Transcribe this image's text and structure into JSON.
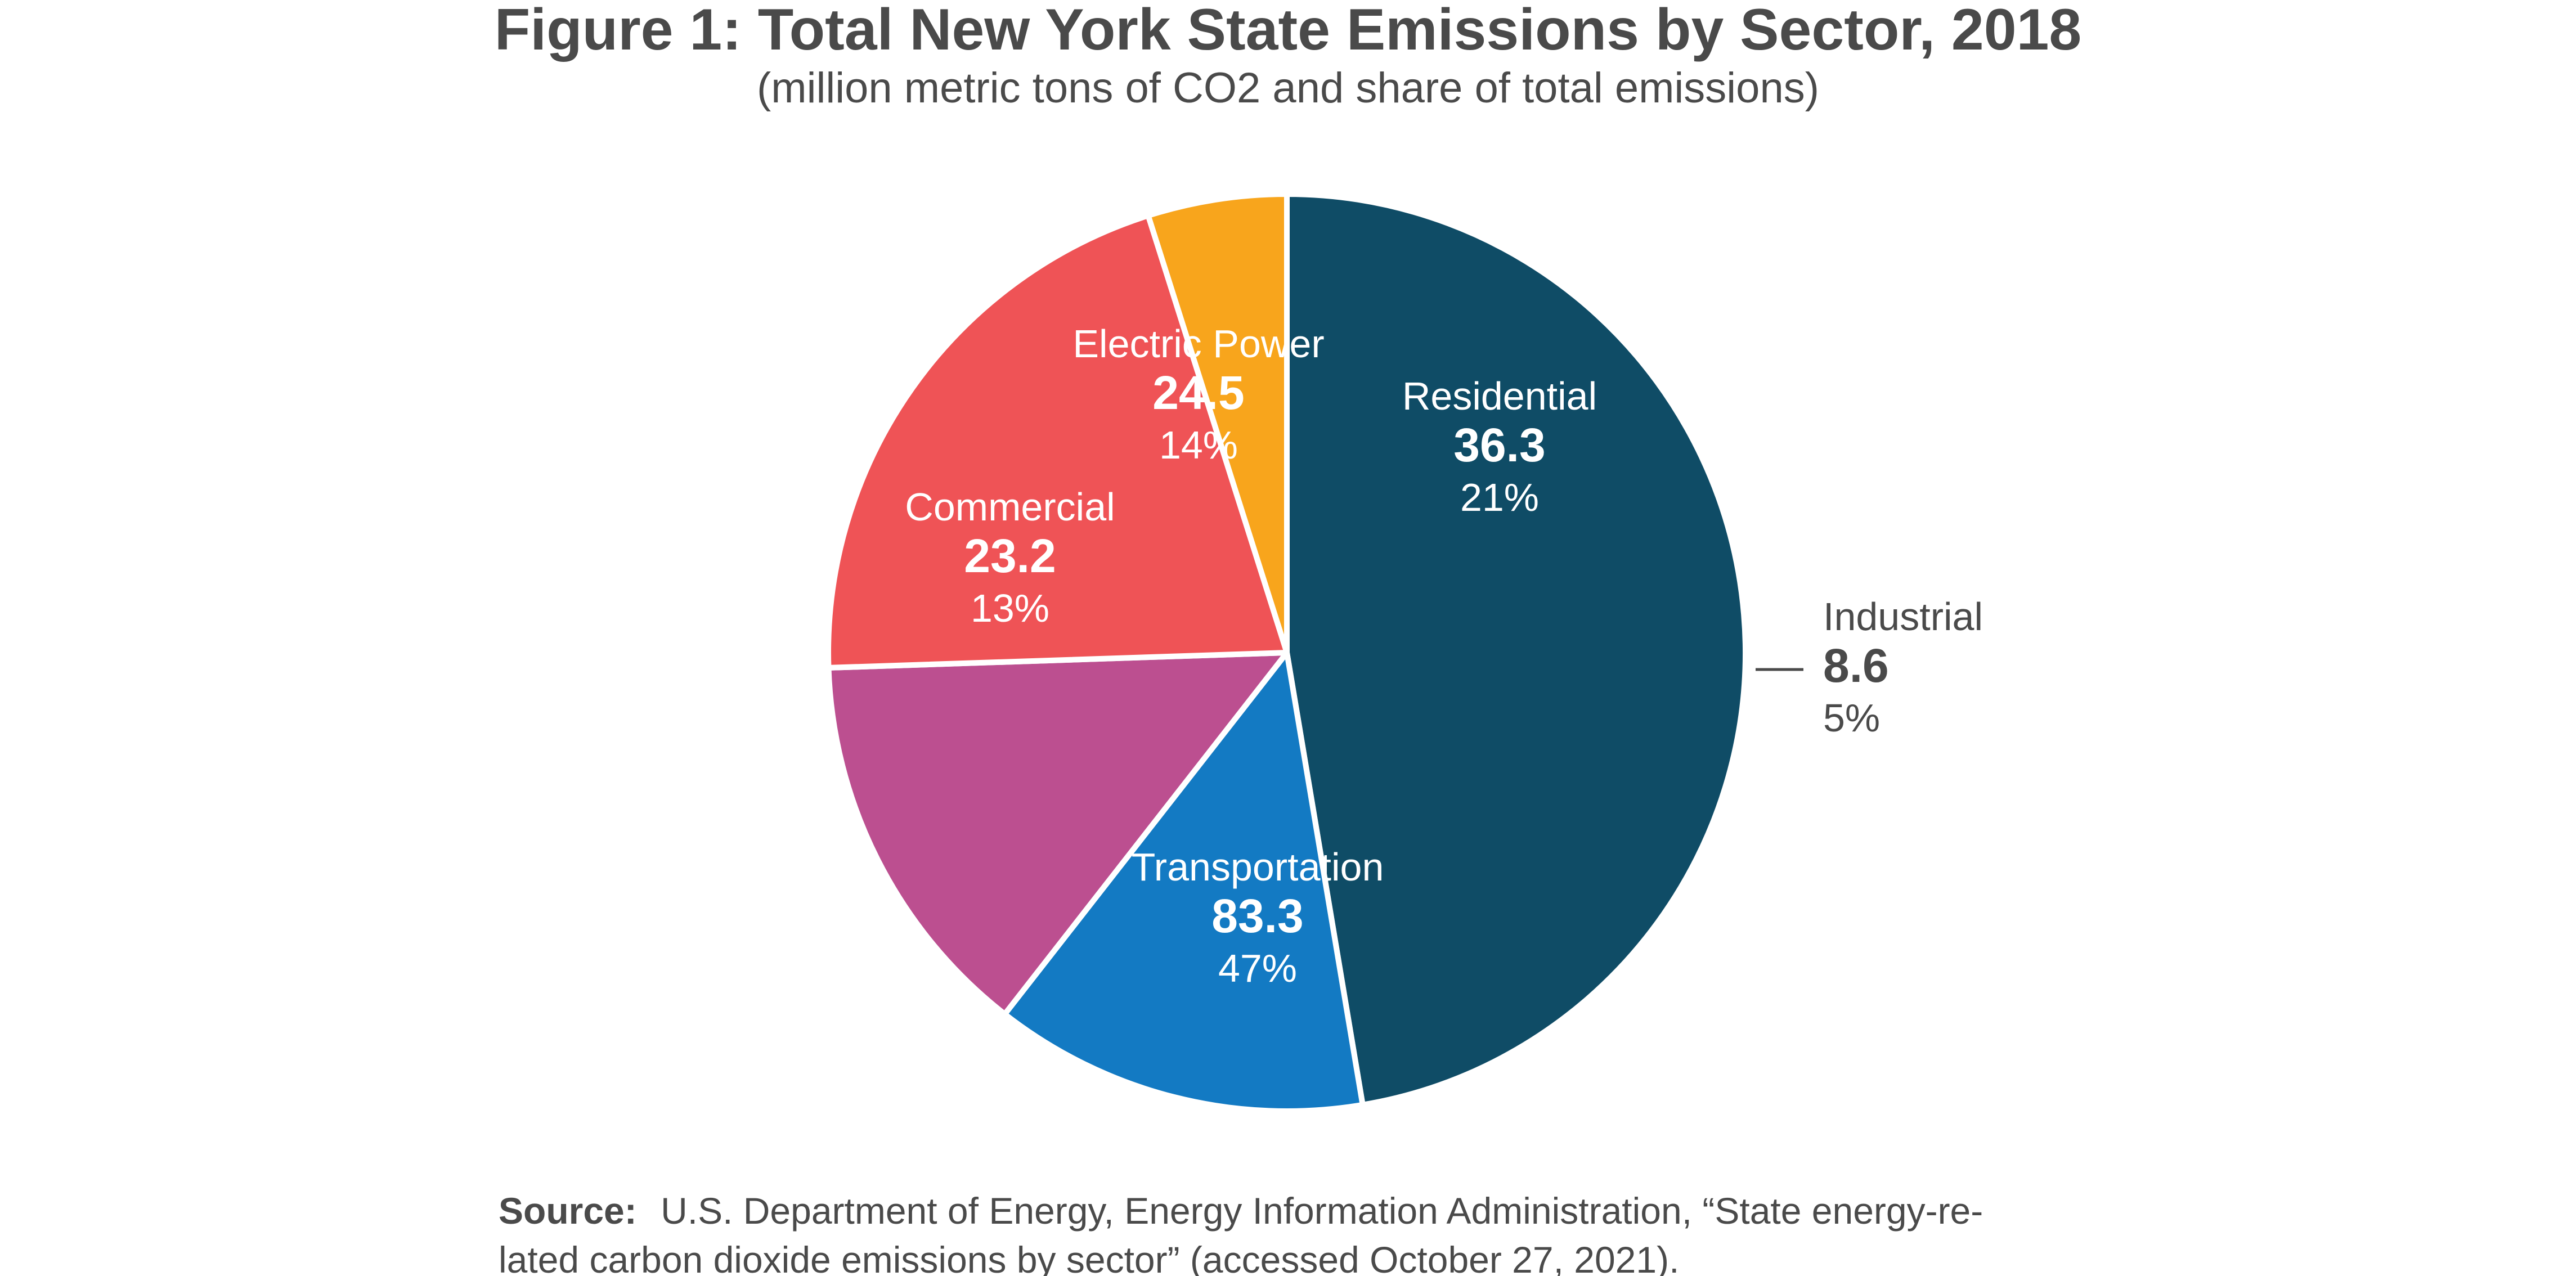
{
  "chart_data": {
    "type": "pie",
    "title": "Figure 1: Total New York State Emissions by Sector, 2018",
    "subtitle": "(million metric tons of CO2 and share of total emissions)",
    "start_angle_deg": -90,
    "direction": "clockwise",
    "slices": [
      {
        "label": "Transportation",
        "value": 83.3,
        "value_label": "83.3",
        "percent_label": "47%",
        "color": "#0f4c66",
        "text_color": "#ffffff"
      },
      {
        "label": "Commercial",
        "value": 23.2,
        "value_label": "23.2",
        "percent_label": "13%",
        "color": "#137ac3",
        "text_color": "#ffffff"
      },
      {
        "label": "Electric Power",
        "value": 24.5,
        "value_label": "24.5",
        "percent_label": "14%",
        "color": "#bc4f90",
        "text_color": "#ffffff"
      },
      {
        "label": "Residential",
        "value": 36.3,
        "value_label": "36.3",
        "percent_label": "21%",
        "color": "#ef5356",
        "text_color": "#ffffff"
      },
      {
        "label": "Industrial",
        "value": 8.6,
        "value_label": "8.6",
        "percent_label": "5%",
        "color": "#f8a51c",
        "text_color": "#4a4a4a",
        "label_outside": true
      }
    ]
  },
  "source": {
    "prefix": "Source:",
    "line1": "U.S. Department of Energy, Energy Information Administration, “State energy-re-",
    "line2": "lated carbon dioxide emissions by sector” (accessed October 27, 2021)."
  }
}
